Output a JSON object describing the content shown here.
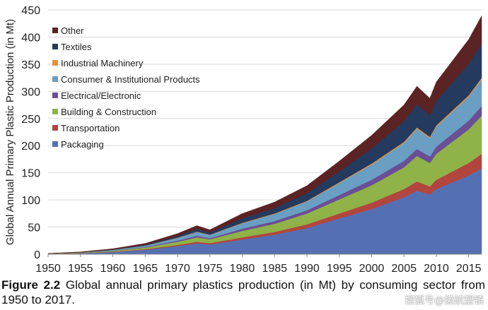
{
  "chart_data": {
    "type": "area",
    "stacked": true,
    "ylabel": "Global Annual Primary Plastic Production (in Mt)",
    "xlabel": "",
    "xlim": [
      1950,
      2017
    ],
    "ylim": [
      0,
      450
    ],
    "yticks": [
      0,
      50,
      100,
      150,
      200,
      250,
      300,
      350,
      400,
      450
    ],
    "xticks": [
      1950,
      1955,
      1960,
      1965,
      1970,
      1975,
      1980,
      1985,
      1990,
      1995,
      2000,
      2005,
      2010,
      2015
    ],
    "grid": "horizontal",
    "legend_position": "top-left",
    "years": [
      1950,
      1955,
      1960,
      1965,
      1970,
      1973,
      1975,
      1980,
      1985,
      1990,
      1995,
      2000,
      2005,
      2007,
      2009,
      2010,
      2015,
      2017
    ],
    "series": [
      {
        "name": "Packaging",
        "color": "#5470b3",
        "values": [
          0.5,
          1.5,
          4,
          8,
          15,
          20,
          18,
          27,
          36,
          48,
          66,
          83,
          105,
          117,
          110,
          120,
          145,
          158
        ]
      },
      {
        "name": "Transportation",
        "color": "#b2463e",
        "values": [
          0.1,
          0.3,
          0.7,
          1.2,
          2,
          3,
          2.5,
          4,
          5,
          7,
          9,
          12,
          15,
          17,
          15,
          17,
          23,
          27
        ]
      },
      {
        "name": "Building & Construction",
        "color": "#8fb249",
        "values": [
          0.3,
          0.7,
          1.5,
          3,
          6,
          8,
          7,
          12,
          15,
          20,
          26,
          32,
          40,
          47,
          43,
          48,
          62,
          70
        ]
      },
      {
        "name": "Electrical/Electronic",
        "color": "#6a4e96",
        "values": [
          0.1,
          0.3,
          0.6,
          1,
          2,
          3,
          2,
          4,
          5,
          6,
          8,
          10,
          12,
          13,
          12,
          13,
          16,
          18
        ]
      },
      {
        "name": "Consumer & Institutional Products",
        "color": "#6a9ec3",
        "values": [
          0.2,
          0.5,
          1.2,
          2.5,
          5,
          7,
          6,
          10,
          13,
          16,
          22,
          28,
          33,
          37,
          34,
          37,
          44,
          49
        ]
      },
      {
        "name": "Industrial Machinery",
        "color": "#e6923c",
        "values": [
          0,
          0.1,
          0.1,
          0.2,
          0.5,
          0.6,
          0.5,
          0.8,
          1,
          1.2,
          1.5,
          2,
          2,
          2.3,
          2.2,
          2.3,
          2.6,
          3
        ]
      },
      {
        "name": "Textiles",
        "color": "#243a5e",
        "values": [
          0.1,
          0.3,
          0.8,
          1.5,
          3,
          5,
          4,
          8,
          10,
          14,
          20,
          28,
          38,
          43,
          40,
          45,
          58,
          63
        ]
      },
      {
        "name": "Other",
        "color": "#5b2323",
        "values": [
          0.2,
          0.6,
          1.2,
          2.5,
          4.5,
          6,
          5,
          9,
          11,
          14,
          19,
          24,
          30,
          33,
          31,
          35,
          45,
          51
        ]
      }
    ]
  },
  "caption": {
    "label": "Figure 2.2",
    "text": "Global annual primary plastics production (in Mt) by consuming sector from 1950 to 2017."
  },
  "watermark": "搜狐号@搓航塑镇"
}
